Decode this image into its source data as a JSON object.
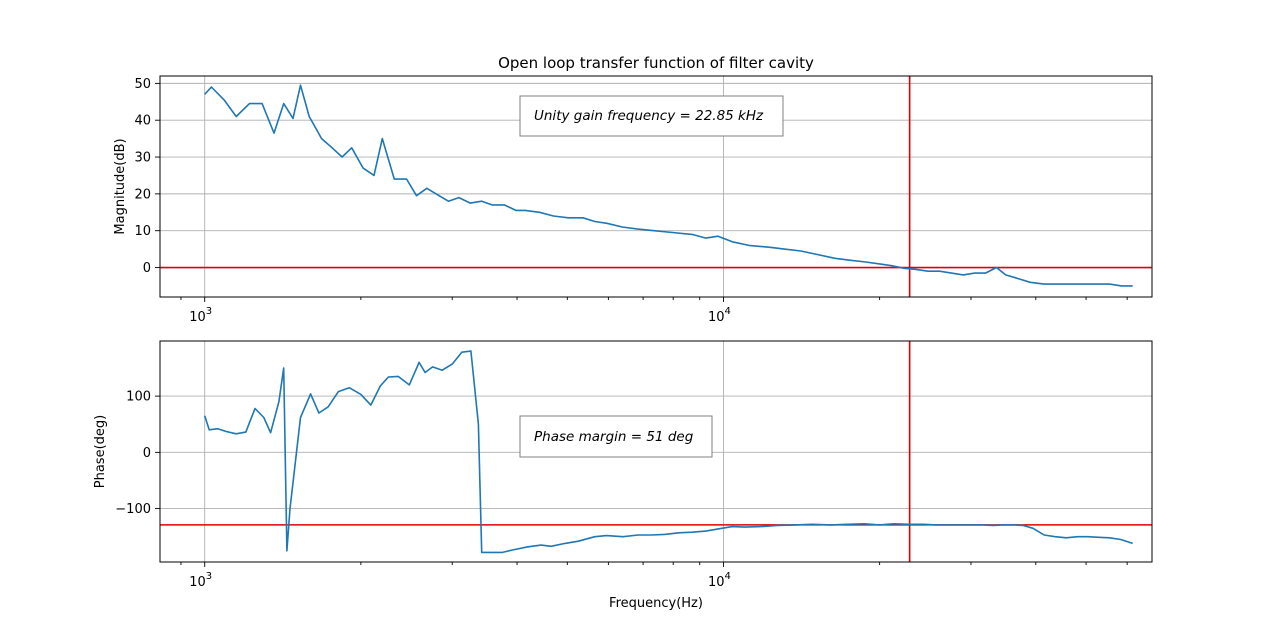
{
  "chart_data": [
    {
      "type": "line",
      "title": "Open loop transfer function of filter cavity",
      "xlabel": "",
      "ylabel": "Magnitude(dB)",
      "xscale": "log",
      "xlim": [
        820,
        67000
      ],
      "ylim": [
        -8,
        52
      ],
      "yticks": [
        0,
        10,
        20,
        30,
        40,
        50
      ],
      "xticks": [
        {
          "value": 1000,
          "base": "10",
          "exp": "3"
        },
        {
          "value": 10000,
          "base": "10",
          "exp": "4"
        }
      ],
      "grid": true,
      "annotation": "Unity gain frequency = 22.85 kHz",
      "hline": 0,
      "vline": 22850,
      "line_color": "#1f77b4",
      "ref_color": "#e00000",
      "series": [
        {
          "x": [
            1000,
            1030,
            1090,
            1150,
            1220,
            1290,
            1360,
            1420,
            1480,
            1530,
            1590,
            1680,
            1760,
            1840,
            1920,
            2020,
            2120,
            2200,
            2320,
            2450,
            2560,
            2680,
            2830,
            2950,
            3090,
            3250,
            3420,
            3580,
            3780,
            3980,
            4150,
            4420,
            4700,
            5020,
            5360,
            5650,
            5960,
            6380,
            6800,
            7350,
            7970,
            8700,
            9250,
            9760,
            10400,
            11200,
            12300,
            13100,
            14100,
            15200,
            16400,
            17500,
            18800,
            20000,
            21100,
            22300,
            23500,
            24800,
            26100,
            27500,
            29000,
            30500,
            32000,
            33600,
            35000,
            37000,
            39000,
            41500,
            44000,
            46500,
            49500,
            52500,
            55500,
            58500,
            61500
          ],
          "y": [
            47.0,
            49.0,
            45.5,
            41.0,
            44.5,
            44.5,
            36.5,
            44.5,
            40.5,
            49.5,
            41.0,
            35.0,
            32.5,
            30.0,
            32.5,
            27.0,
            25.0,
            35.0,
            24.0,
            24.0,
            19.5,
            21.5,
            19.5,
            18.0,
            19.0,
            17.5,
            18.0,
            17.0,
            17.0,
            15.5,
            15.5,
            15.0,
            14.0,
            13.5,
            13.5,
            12.5,
            12.0,
            11.0,
            10.5,
            10.0,
            9.5,
            9.0,
            8.0,
            8.5,
            7.0,
            6.0,
            5.5,
            5.0,
            4.5,
            3.5,
            2.5,
            2.0,
            1.5,
            1.0,
            0.5,
            -0.2,
            -0.5,
            -1.0,
            -1.0,
            -1.5,
            -2.0,
            -1.5,
            -1.5,
            0.0,
            -2.0,
            -3.0,
            -4.0,
            -4.5,
            -4.5,
            -4.5,
            -4.5,
            -4.5,
            -4.5,
            -5.0,
            -5.0
          ]
        }
      ]
    },
    {
      "type": "line",
      "title": "",
      "xlabel": "Frequency(Hz)",
      "ylabel": "Phase(deg)",
      "xscale": "log",
      "xlim": [
        820,
        67000
      ],
      "ylim": [
        -195,
        198
      ],
      "yticks": [
        -100,
        0,
        100
      ],
      "ytick_labels": [
        "−100",
        "0",
        "100"
      ],
      "xticks": [
        {
          "value": 1000,
          "base": "10",
          "exp": "3"
        },
        {
          "value": 10000,
          "base": "10",
          "exp": "4"
        }
      ],
      "grid": true,
      "annotation": "Phase margin = 51 deg",
      "hline": -129,
      "vline": 22850,
      "line_color": "#1f77b4",
      "ref_color": "#e00000",
      "series": [
        {
          "x": [
            1000,
            1020,
            1060,
            1100,
            1150,
            1200,
            1250,
            1300,
            1340,
            1390,
            1420,
            1440,
            1460,
            1530,
            1600,
            1660,
            1730,
            1810,
            1900,
            2000,
            2090,
            2180,
            2260,
            2360,
            2480,
            2590,
            2660,
            2750,
            2870,
            3000,
            3130,
            3260,
            3370,
            3420,
            3450,
            3480,
            3750,
            3950,
            4200,
            4450,
            4650,
            4950,
            5250,
            5650,
            5950,
            6400,
            6850,
            7250,
            7700,
            8200,
            8700,
            9250,
            9800,
            10400,
            11000,
            11800,
            12700,
            13800,
            14800,
            16100,
            17300,
            18700,
            20000,
            21300,
            22800,
            24300,
            25700,
            27100,
            28700,
            30100,
            31600,
            33100,
            34600,
            36200,
            37800,
            39500,
            41500,
            43600,
            45800,
            48100,
            50400,
            52900,
            55500,
            58300,
            61500
          ],
          "y": [
            65,
            40,
            42,
            37,
            33,
            36,
            78,
            62,
            35,
            90,
            150,
            -175,
            -100,
            62,
            104,
            70,
            81,
            108,
            115,
            103,
            84,
            118,
            134,
            135,
            120,
            160,
            142,
            152,
            146,
            157,
            178,
            180,
            50,
            -178,
            -178,
            -178,
            -178,
            -173,
            -168,
            -165,
            -167,
            -162,
            -158,
            -150,
            -148,
            -150,
            -147,
            -147,
            -146,
            -143,
            -142,
            -140,
            -136,
            -132,
            -133,
            -132,
            -130,
            -129,
            -128,
            -129,
            -128,
            -127,
            -129,
            -127,
            -128,
            -128,
            -129,
            -129,
            -129,
            -129,
            -129,
            -130,
            -129,
            -129,
            -130,
            -135,
            -147,
            -150,
            -152,
            -150,
            -150,
            -151,
            -152,
            -155,
            -162
          ]
        }
      ]
    }
  ]
}
